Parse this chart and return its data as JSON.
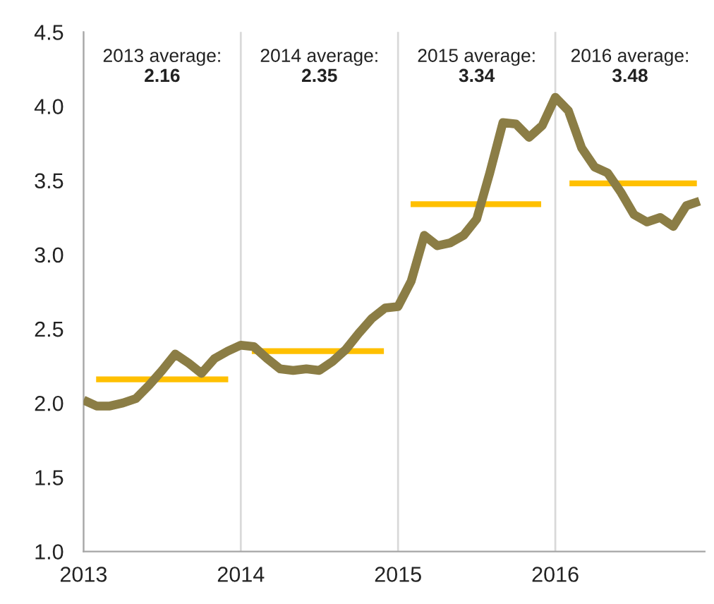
{
  "chart_data": {
    "type": "line",
    "xlim": [
      2013,
      2016.95
    ],
    "xticks": [
      2013,
      2014,
      2015,
      2016
    ],
    "ylim": [
      1.0,
      4.5
    ],
    "yticks": [
      {
        "value": 1.0,
        "label": "1.0"
      },
      {
        "value": 1.5,
        "label": "1.5"
      },
      {
        "value": 2.0,
        "label": "2.0"
      },
      {
        "value": 2.5,
        "label": "2.5"
      },
      {
        "value": 3.0,
        "label": "3.0"
      },
      {
        "value": 3.5,
        "label": "3.5"
      },
      {
        "value": 4.0,
        "label": "4.0"
      },
      {
        "value": 4.5,
        "label": "4.5"
      }
    ],
    "grid": "x",
    "legend": false,
    "series": [
      {
        "color": "#8b7d45",
        "x": [
          2013.0,
          2013.083,
          2013.167,
          2013.25,
          2013.333,
          2013.417,
          2013.5,
          2013.583,
          2013.667,
          2013.75,
          2013.833,
          2013.917,
          2014.0,
          2014.083,
          2014.167,
          2014.25,
          2014.333,
          2014.417,
          2014.5,
          2014.583,
          2014.667,
          2014.75,
          2014.833,
          2014.917,
          2015.0,
          2015.083,
          2015.167,
          2015.25,
          2015.333,
          2015.417,
          2015.5,
          2015.583,
          2015.667,
          2015.75,
          2015.833,
          2015.917,
          2016.0,
          2016.083,
          2016.167,
          2016.25,
          2016.333,
          2016.417,
          2016.5,
          2016.583,
          2016.667,
          2016.75,
          2016.833,
          2016.917
        ],
        "values": [
          2.02,
          1.98,
          1.98,
          2.0,
          2.03,
          2.12,
          2.22,
          2.33,
          2.27,
          2.2,
          2.3,
          2.35,
          2.39,
          2.38,
          2.3,
          2.23,
          2.22,
          2.23,
          2.22,
          2.28,
          2.36,
          2.47,
          2.57,
          2.64,
          2.65,
          2.82,
          3.13,
          3.06,
          3.08,
          3.13,
          3.24,
          3.55,
          3.89,
          3.88,
          3.79,
          3.87,
          4.06,
          3.97,
          3.72,
          3.59,
          3.55,
          3.42,
          3.27,
          3.22,
          3.25,
          3.19,
          3.33,
          3.36
        ]
      },
      {
        "color": "#ffc000",
        "x": [
          2013.08,
          2013.92
        ],
        "values": [
          2.16,
          2.16
        ]
      },
      {
        "color": "#ffc000",
        "x": [
          2014.07,
          2014.91
        ],
        "values": [
          2.35,
          2.35
        ]
      },
      {
        "color": "#ffc000",
        "x": [
          2015.08,
          2015.91
        ],
        "values": [
          3.34,
          3.34
        ]
      },
      {
        "color": "#ffc000",
        "x": [
          2016.09,
          2016.9
        ],
        "values": [
          3.48,
          3.48
        ]
      }
    ],
    "annotations": [
      "2013 average:\n2.16",
      "2014 average:\n2.35",
      "2015 average:\n3.34",
      "2016 average:\n3.48"
    ]
  }
}
